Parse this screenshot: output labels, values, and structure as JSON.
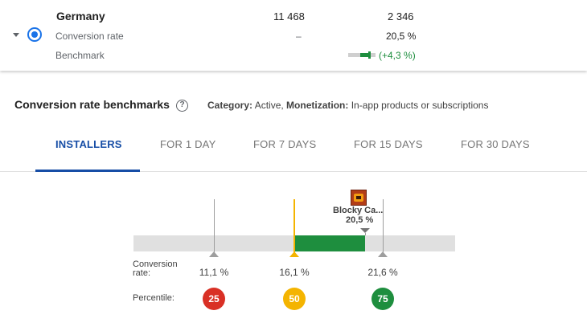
{
  "country_row": {
    "name": "Germany",
    "installers": "11 468",
    "acquisitions": "2 346",
    "conversion_label": "Conversion rate",
    "conversion_dash": "–",
    "conversion_value": "20,5 %",
    "benchmark_label": "Benchmark",
    "benchmark_delta": "(+4,3 %)"
  },
  "section": {
    "title": "Conversion rate benchmarks",
    "help_glyph": "?",
    "category_label": "Category:",
    "category_value": "Active,",
    "monetization_label": "Monetization:",
    "monetization_value": "In-app products or subscriptions"
  },
  "tabs": [
    {
      "label": "INSTALLERS",
      "active": true
    },
    {
      "label": "FOR 1 DAY",
      "active": false
    },
    {
      "label": "FOR 7 DAYS",
      "active": false
    },
    {
      "label": "FOR 15 DAYS",
      "active": false
    },
    {
      "label": "FOR 30 DAYS",
      "active": false
    }
  ],
  "benchmark": {
    "app_name": "Blocky Ca...",
    "app_value": "20,5 %",
    "app_rate": 20.5,
    "scale_min": 6.1,
    "scale_max": 26.1,
    "conversion_label_line1": "Conversion",
    "conversion_label_line2": "rate:",
    "percentile_label": "Percentile:",
    "percentiles": [
      {
        "percentile": "25",
        "rate": 11.1,
        "rate_label": "11,1 %",
        "color": "#d93025"
      },
      {
        "percentile": "50",
        "rate": 16.1,
        "rate_label": "16,1 %",
        "color": "#f4b400"
      },
      {
        "percentile": "75",
        "rate": 21.6,
        "rate_label": "21,6 %",
        "color": "#1e8e3e"
      }
    ],
    "colors": {
      "track": "#e0e0e0",
      "fill": "#1e8e3e",
      "median": "#f4b400",
      "marker": "#9e9e9e"
    }
  }
}
